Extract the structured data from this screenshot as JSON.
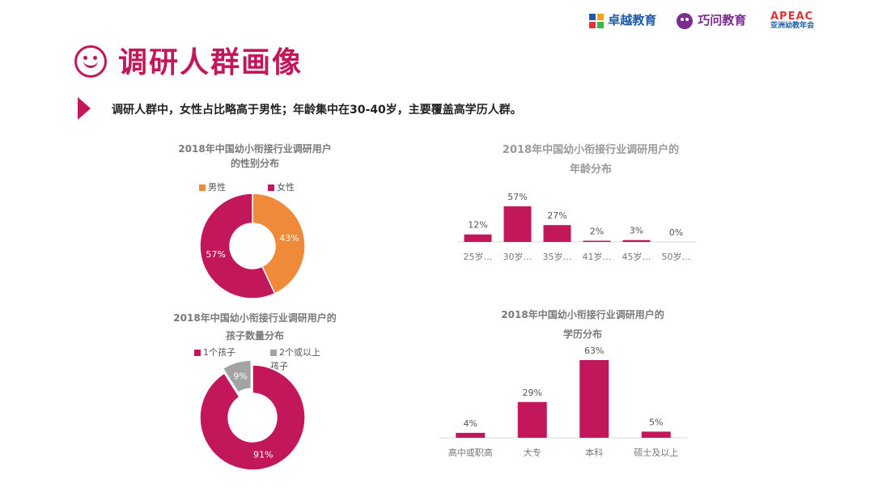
{
  "logos": {
    "logo1": "卓越教育",
    "logo2": "巧问教育",
    "logo3_top": "APEAC",
    "logo3_bottom": "亚洲幼教年会"
  },
  "page_title": "调研人群画像",
  "summary": "调研人群中，女性占比略高于男性；年龄集中在30-40岁，主要覆盖高学历人群。",
  "colors": {
    "primary": "#C2185B",
    "orange": "#EE8A3A",
    "grey": "#A3A3A3"
  },
  "chart_data": [
    {
      "type": "pie",
      "title_line1": "2018年中国幼小衔接行业调研用户",
      "title_line2": "的性别分布",
      "series": [
        {
          "name": "男性",
          "value": 43,
          "label": "43%",
          "color": "#EE8A3A"
        },
        {
          "name": "女性",
          "value": 57,
          "label": "57%",
          "color": "#C2185B"
        }
      ]
    },
    {
      "type": "bar",
      "title_line1": "2018年中国幼小衔接行业调研用户的",
      "title_line2": "年龄分布",
      "categories": [
        "25岁…",
        "30岁…",
        "35岁…",
        "41岁…",
        "45岁…",
        "50岁…"
      ],
      "values": [
        12,
        57,
        27,
        2,
        3,
        0
      ],
      "labels": [
        "12%",
        "57%",
        "27%",
        "2%",
        "3%",
        "0%"
      ]
    },
    {
      "type": "pie",
      "title_line1": "2018年中国幼小衔接行业调研用户的",
      "title_line2": "孩子数量分布",
      "series": [
        {
          "name": "1个孩子",
          "value": 91,
          "label": "91%",
          "color": "#C2185B"
        },
        {
          "name": "2个或以上孩子",
          "value": 9,
          "label": "9%",
          "color": "#A3A3A3"
        }
      ]
    },
    {
      "type": "bar",
      "title_line1": "2018年中国幼小衔接行业调研用户的",
      "title_line2": "学历分布",
      "categories": [
        "高中或职高",
        "大专",
        "本科",
        "硕士及以上"
      ],
      "values": [
        4,
        29,
        63,
        5
      ],
      "labels": [
        "4%",
        "29%",
        "63%",
        "5%"
      ]
    }
  ]
}
